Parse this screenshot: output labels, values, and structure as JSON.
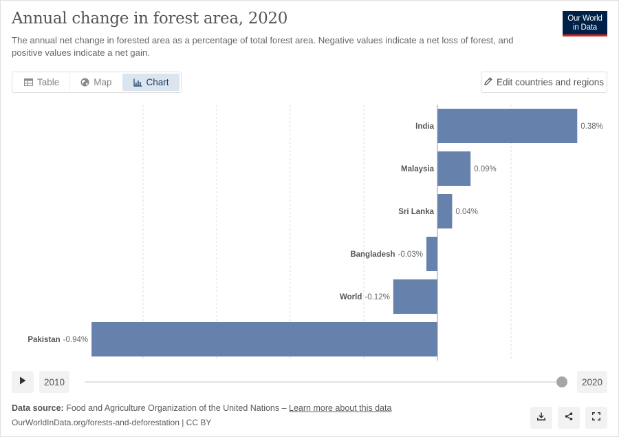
{
  "header": {
    "title": "Annual change in forest area, 2020",
    "subtitle": "The annual net change in forested area as a percentage of total forest area. Negative values indicate a net loss of forest, and positive values indicate a net gain.",
    "logo_line1": "Our World",
    "logo_line2": "in Data"
  },
  "tabs": [
    {
      "label": "Table",
      "icon": "table-icon"
    },
    {
      "label": "Map",
      "icon": "globe-icon"
    },
    {
      "label": "Chart",
      "icon": "chart-icon",
      "active": true
    }
  ],
  "edit_button": {
    "label": "Edit countries and regions",
    "icon": "pencil-icon"
  },
  "chart_data": {
    "type": "bar",
    "orientation": "horizontal",
    "categories": [
      "India",
      "Malaysia",
      "Sri Lanka",
      "Bangladesh",
      "World",
      "Pakistan"
    ],
    "values": [
      0.38,
      0.09,
      0.04,
      -0.03,
      -0.12,
      -0.94
    ],
    "value_labels": [
      "0.38%",
      "0.09%",
      "0.04%",
      "-0.03%",
      "-0.12%",
      "-0.94%"
    ],
    "unit": "%",
    "xlim": [
      -1.0,
      0.4
    ],
    "gridlines": [
      -0.8,
      -0.6,
      -0.4,
      -0.2,
      0.0,
      0.2
    ],
    "grid": true,
    "bar_color": "#6681ab",
    "title": "Annual change in forest area, 2020",
    "xlabel": "",
    "ylabel": ""
  },
  "timeline": {
    "start_year": "2010",
    "end_year": "2020",
    "play_icon": "play-icon"
  },
  "footer": {
    "source_label": "Data source:",
    "source_text": "Food and Agriculture Organization of the United Nations – ",
    "learn_more": "Learn more about this data",
    "url": "OurWorldInData.org/forests-and-deforestation | CC BY",
    "actions": [
      "download-icon",
      "share-icon",
      "fullscreen-icon"
    ]
  }
}
